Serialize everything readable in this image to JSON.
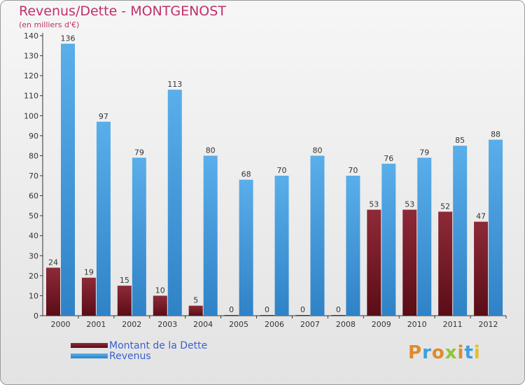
{
  "title": "Revenus/Dette - MONTGENOST",
  "subtitle": "(en milliers d'€)",
  "logo_text": "Proxiti",
  "colors": {
    "title": "#c0306a",
    "debt_top": "#8e2a38",
    "debt_bottom": "#5a0d16",
    "revenue_top": "#5aaeea",
    "revenue_bottom": "#2f82c6",
    "legend_text": "#3a5fcf",
    "logo_letters": [
      "#e08a2a",
      "#3aa0dc",
      "#e08a2a",
      "#8fc43a",
      "#e08a2a",
      "#3aa0dc",
      "#e0c02a"
    ]
  },
  "chart_data": {
    "type": "bar",
    "title": "Revenus/Dette - MONTGENOST",
    "ylabel": "(en milliers d'€)",
    "categories": [
      "2000",
      "2001",
      "2002",
      "2003",
      "2004",
      "2005",
      "2006",
      "2007",
      "2008",
      "2009",
      "2010",
      "2011",
      "2012"
    ],
    "series": [
      {
        "name": "Montant de la Dette",
        "values": [
          24,
          19,
          15,
          10,
          5,
          0,
          0,
          0,
          0,
          53,
          53,
          52,
          47
        ]
      },
      {
        "name": "Revenus",
        "values": [
          136,
          97,
          79,
          113,
          80,
          68,
          70,
          80,
          70,
          76,
          79,
          85,
          88
        ]
      }
    ],
    "ylim": [
      0,
      140
    ],
    "yticks": [
      0,
      10,
      20,
      30,
      40,
      50,
      60,
      70,
      80,
      90,
      100,
      110,
      120,
      130,
      140
    ],
    "grid": false,
    "legend_position": "bottom-left"
  }
}
